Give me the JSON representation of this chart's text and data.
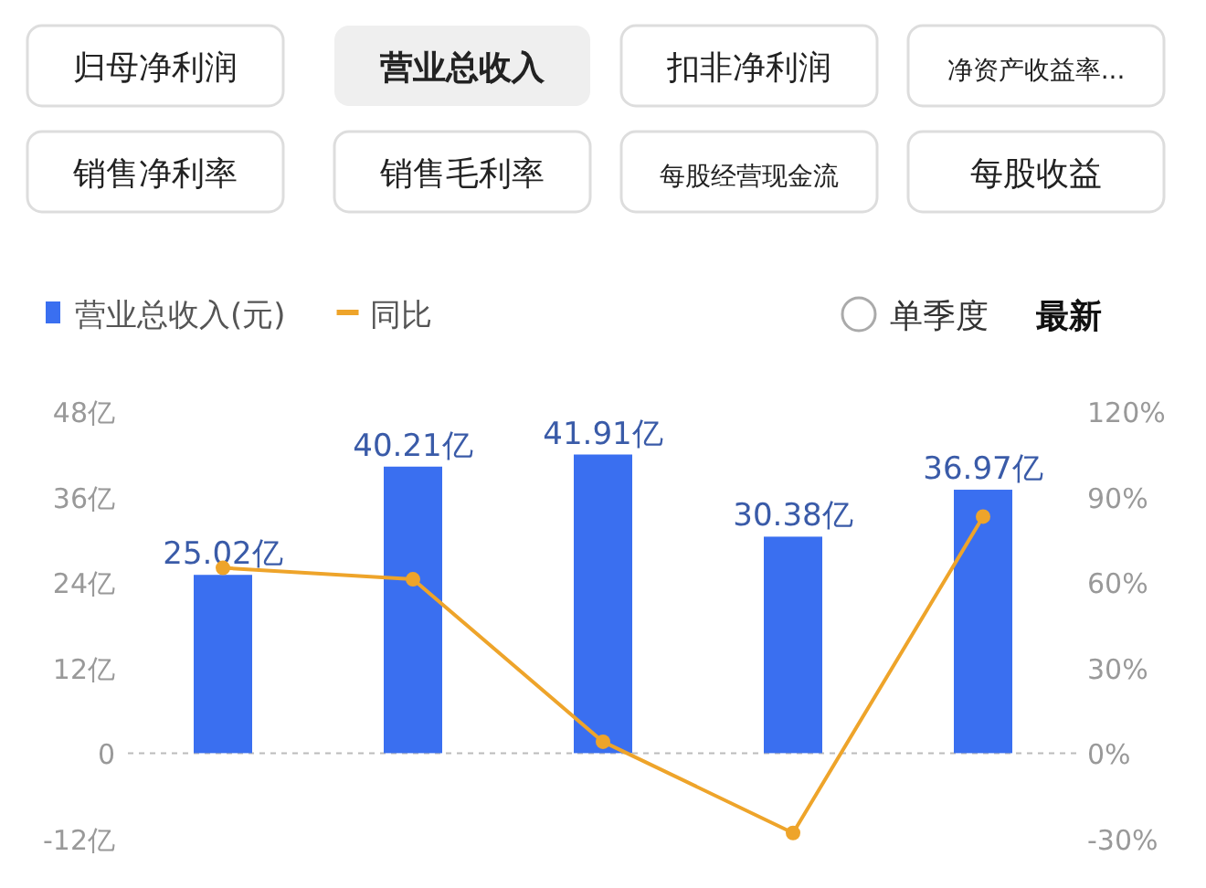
{
  "chart_data": [
    {
      "type": "other",
      "annotations": [
        "归母净利润",
        "营业总收入",
        "扣非净利润",
        "净资产收益率...",
        "销售净利率",
        "销售毛利率",
        "每股经营现金流",
        "每股收益",
        "单季度",
        "最新"
      ]
    },
    {
      "type": "bar",
      "categories": [
        null,
        null,
        null,
        null,
        null
      ],
      "series": [
        {
          "name": "营业总收入(元)",
          "type": "bar",
          "color": "#3a6ff0",
          "values": [
            25.02,
            40.21,
            41.91,
            30.38,
            36.97
          ],
          "value_labels": [
            "25.02亿",
            "40.21亿",
            "41.91亿",
            "30.38亿",
            "36.97亿"
          ]
        },
        {
          "name": "同比",
          "type": "line",
          "axis": "y2",
          "color": "#eea42a",
          "values": [
            65,
            61,
            4,
            -28,
            83
          ]
        }
      ],
      "ylim": [
        -12,
        48
      ],
      "yticks": [
        {
          "value": -12,
          "label": "-12亿"
        },
        {
          "value": 0,
          "label": "0"
        },
        {
          "value": 12,
          "label": "12亿"
        },
        {
          "value": 24,
          "label": "24亿"
        },
        {
          "value": 36,
          "label": "36亿"
        },
        {
          "value": 48,
          "label": "48亿"
        }
      ],
      "y2lim": [
        -30,
        120
      ],
      "y2ticks": [
        {
          "value": -30,
          "label": "-30%"
        },
        {
          "value": 0,
          "label": "0%"
        },
        {
          "value": 30,
          "label": "30%"
        },
        {
          "value": 60,
          "label": "60%"
        },
        {
          "value": 90,
          "label": "90%"
        },
        {
          "value": 120,
          "label": "120%"
        }
      ],
      "legend": "top left",
      "marker": "circle"
    }
  ]
}
